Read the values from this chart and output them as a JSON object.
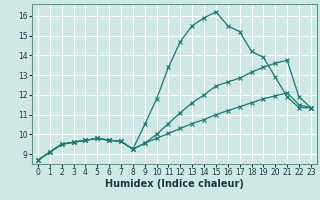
{
  "xlabel": "Humidex (Indice chaleur)",
  "bg_color": "#cfe8e5",
  "grid_color": "#ffffff",
  "line_color": "#1a7a6e",
  "xlim": [
    -0.5,
    23.5
  ],
  "ylim": [
    8.5,
    16.6
  ],
  "xticks": [
    0,
    1,
    2,
    3,
    4,
    5,
    6,
    7,
    8,
    9,
    10,
    11,
    12,
    13,
    14,
    15,
    16,
    17,
    18,
    19,
    20,
    21,
    22,
    23
  ],
  "yticks": [
    9,
    10,
    11,
    12,
    13,
    14,
    15,
    16
  ],
  "line1_x": [
    0,
    1,
    2,
    3,
    4,
    5,
    6,
    7,
    8,
    9,
    10,
    11,
    12,
    13,
    14,
    15,
    16,
    17,
    18,
    19,
    20,
    21,
    22,
    23
  ],
  "line1_y": [
    8.7,
    9.1,
    9.5,
    9.6,
    9.7,
    9.8,
    9.7,
    9.65,
    9.25,
    10.5,
    11.8,
    13.4,
    14.7,
    15.5,
    15.9,
    16.2,
    15.5,
    15.2,
    14.2,
    13.9,
    12.9,
    11.9,
    11.35,
    11.35
  ],
  "line2_x": [
    0,
    1,
    2,
    3,
    4,
    5,
    6,
    7,
    8,
    9,
    10,
    11,
    12,
    13,
    14,
    15,
    16,
    17,
    18,
    19,
    20,
    21,
    22,
    23
  ],
  "line2_y": [
    8.7,
    9.1,
    9.5,
    9.6,
    9.7,
    9.8,
    9.7,
    9.65,
    9.25,
    9.55,
    10.0,
    10.55,
    11.1,
    11.6,
    12.0,
    12.45,
    12.65,
    12.85,
    13.15,
    13.4,
    13.6,
    13.75,
    11.9,
    11.35
  ],
  "line3_x": [
    0,
    1,
    2,
    3,
    4,
    5,
    6,
    7,
    8,
    9,
    10,
    11,
    12,
    13,
    14,
    15,
    16,
    17,
    18,
    19,
    20,
    21,
    22,
    23
  ],
  "line3_y": [
    8.7,
    9.1,
    9.5,
    9.6,
    9.7,
    9.8,
    9.7,
    9.65,
    9.25,
    9.55,
    9.8,
    10.05,
    10.3,
    10.55,
    10.75,
    11.0,
    11.2,
    11.4,
    11.6,
    11.8,
    11.95,
    12.1,
    11.5,
    11.35
  ],
  "xlabel_fontsize": 7,
  "tick_fontsize": 5.5,
  "linewidth": 0.9,
  "markersize": 3.0
}
